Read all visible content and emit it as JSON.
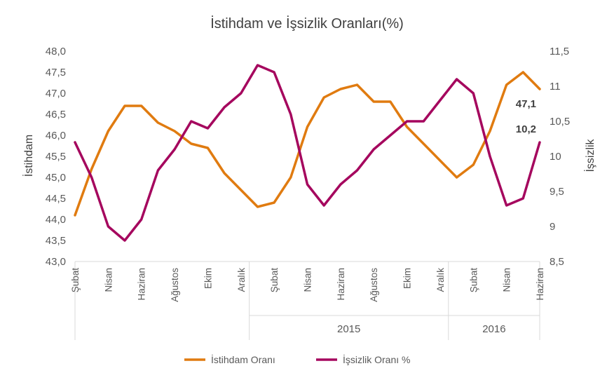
{
  "chart_data": {
    "type": "line",
    "title": "İstihdam ve İşsizlik Oranları(%)",
    "ylabel_left": "İstihdam",
    "ylabel_right": "İşsizlik",
    "ylim_left": [
      43.0,
      48.0
    ],
    "ylim_right": [
      8.5,
      11.5
    ],
    "left_ticks": [
      "43,0",
      "43,5",
      "44,0",
      "44,5",
      "45,0",
      "45,5",
      "46,0",
      "46,5",
      "47,0",
      "47,5",
      "48,0"
    ],
    "right_ticks": [
      "8,5",
      "9",
      "9,5",
      "10",
      "10,5",
      "11",
      "11,5"
    ],
    "x_tick_labels": [
      {
        "index": 0,
        "label": "Şubat"
      },
      {
        "index": 2,
        "label": "Nisan"
      },
      {
        "index": 4,
        "label": "Haziran"
      },
      {
        "index": 6,
        "label": "Ağustos"
      },
      {
        "index": 8,
        "label": "Ekim"
      },
      {
        "index": 10,
        "label": "Aralık"
      },
      {
        "index": 12,
        "label": "Şubat"
      },
      {
        "index": 14,
        "label": "Nisan"
      },
      {
        "index": 16,
        "label": "Haziran"
      },
      {
        "index": 18,
        "label": "Ağustos"
      },
      {
        "index": 20,
        "label": "Ekim"
      },
      {
        "index": 22,
        "label": "Aralık"
      },
      {
        "index": 24,
        "label": "Şubat"
      },
      {
        "index": 26,
        "label": "Nisan"
      },
      {
        "index": 28,
        "label": "Haziran"
      }
    ],
    "year_groups": [
      {
        "label": "",
        "start": 0,
        "end": 10
      },
      {
        "label": "2015",
        "start": 11,
        "end": 22
      },
      {
        "label": "2016",
        "start": 23,
        "end": 28
      }
    ],
    "series": [
      {
        "name": "İstihdam Oranı",
        "axis": "left",
        "color": "#E07B10",
        "values": [
          44.1,
          45.2,
          46.1,
          46.7,
          46.7,
          46.3,
          46.1,
          45.8,
          45.7,
          45.1,
          44.7,
          44.3,
          44.4,
          45.0,
          46.2,
          46.9,
          47.1,
          47.2,
          46.8,
          46.8,
          46.2,
          45.8,
          45.4,
          45.0,
          45.3,
          46.1,
          47.2,
          47.5,
          47.1
        ],
        "end_label": "47,1"
      },
      {
        "name": "İşsizlik Oranı %",
        "axis": "right",
        "color": "#A5075E",
        "values": [
          10.2,
          9.7,
          9.0,
          8.8,
          9.1,
          9.8,
          10.1,
          10.5,
          10.4,
          10.7,
          10.9,
          11.3,
          11.2,
          10.6,
          9.6,
          9.3,
          9.6,
          9.8,
          10.1,
          10.3,
          10.5,
          10.5,
          10.8,
          11.1,
          10.9,
          10.0,
          9.3,
          9.4,
          10.2
        ],
        "end_label": "10,2"
      }
    ],
    "grid": false,
    "legend_position": "bottom"
  }
}
